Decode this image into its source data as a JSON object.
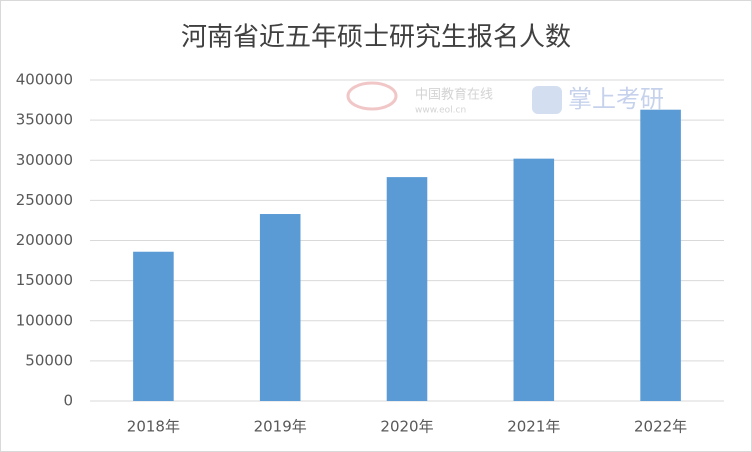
{
  "chart_data": {
    "type": "bar",
    "title": "河南省近五年硕士研究生报名人数",
    "categories": [
      "2018年",
      "2019年",
      "2020年",
      "2021年",
      "2022年"
    ],
    "values": [
      186000,
      233000,
      279000,
      302000,
      363000
    ],
    "color": "#5b9bd5",
    "ylim": [
      0,
      400000
    ],
    "yticks": [
      0,
      50000,
      100000,
      150000,
      200000,
      250000,
      300000,
      350000,
      400000
    ],
    "grid": true,
    "watermarks": [
      "中国教育在线",
      "www.eol.cn",
      "掌上考研"
    ]
  }
}
